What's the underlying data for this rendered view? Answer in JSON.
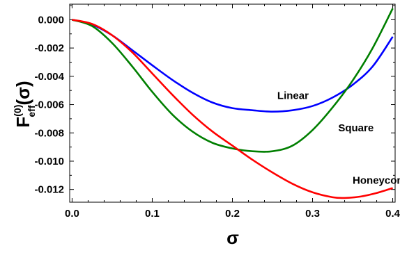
{
  "chart_data": {
    "type": "line",
    "xlabel": "σ",
    "ylabel": {
      "main": "F",
      "subscript": "eff",
      "superscript": "(0)",
      "suffix": "(σ)"
    },
    "xlim": [
      -0.003,
      0.403
    ],
    "ylim": [
      -0.0129,
      0.0011
    ],
    "x_ticks": [
      0.0,
      0.1,
      0.2,
      0.3,
      0.4
    ],
    "x_tick_labels": [
      "0.0",
      "0.1",
      "0.2",
      "0.3",
      "0.4"
    ],
    "y_ticks": [
      0.0,
      -0.002,
      -0.004,
      -0.006,
      -0.008,
      -0.01,
      -0.012
    ],
    "y_tick_labels": [
      "0.000",
      "-0.002",
      "-0.004",
      "-0.006",
      "-0.008",
      "-0.010",
      "-0.012"
    ],
    "grid": false,
    "legend": "inline labels",
    "series": [
      {
        "name": "Linear",
        "color": "#0000ff",
        "x": [
          0.0,
          0.025,
          0.05,
          0.075,
          0.1,
          0.125,
          0.15,
          0.175,
          0.2,
          0.225,
          0.25,
          0.275,
          0.3,
          0.325,
          0.35,
          0.375,
          0.4
        ],
        "y": [
          0.0,
          -0.00035,
          -0.0011,
          -0.00215,
          -0.00322,
          -0.00425,
          -0.00515,
          -0.00585,
          -0.00625,
          -0.0064,
          -0.0065,
          -0.0064,
          -0.0061,
          -0.0055,
          -0.0046,
          -0.0033,
          -0.0012
        ]
      },
      {
        "name": "Square",
        "color": "#007f00",
        "x": [
          0.0,
          0.025,
          0.05,
          0.075,
          0.1,
          0.125,
          0.15,
          0.175,
          0.2,
          0.225,
          0.25,
          0.275,
          0.3,
          0.325,
          0.35,
          0.375,
          0.4
        ],
        "y": [
          0.0,
          -0.00045,
          -0.00165,
          -0.0033,
          -0.0051,
          -0.0067,
          -0.0079,
          -0.0087,
          -0.0091,
          -0.0093,
          -0.0093,
          -0.0089,
          -0.0078,
          -0.0062,
          -0.0043,
          -0.002,
          0.0008
        ]
      },
      {
        "name": "Honeycomb",
        "color": "#ff0000",
        "x": [
          0.0,
          0.025,
          0.05,
          0.075,
          0.1,
          0.125,
          0.15,
          0.175,
          0.2,
          0.225,
          0.25,
          0.275,
          0.3,
          0.325,
          0.34,
          0.36,
          0.38,
          0.4
        ],
        "y": [
          0.0,
          -0.0003,
          -0.0011,
          -0.0023,
          -0.0038,
          -0.0053,
          -0.0067,
          -0.0079,
          -0.0089,
          -0.0099,
          -0.0108,
          -0.0116,
          -0.0122,
          -0.01255,
          -0.0126,
          -0.0125,
          -0.01225,
          -0.0119
        ]
      }
    ],
    "series_labels": [
      {
        "text": "Linear",
        "x": 0.256,
        "y": -0.0056
      },
      {
        "text": "Square",
        "x": 0.332,
        "y": -0.0079
      },
      {
        "text": "Honeycomb",
        "x": 0.35,
        "y": -0.0116
      }
    ]
  }
}
